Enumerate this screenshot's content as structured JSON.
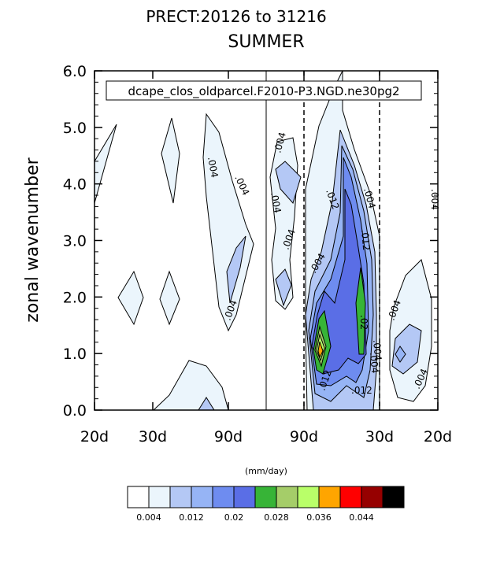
{
  "chart_data": {
    "type": "heatmap",
    "title": "PRECT:20126 to 31216",
    "subtitle": "SUMMER",
    "legend_text": "dcape_clos_oldparcel.F2010-P3.NGD.ne30pg2",
    "ylabel": "zonal wavenumber",
    "xlabel": "",
    "y_ticks": [
      "0.0",
      "1.0",
      "2.0",
      "3.0",
      "4.0",
      "5.0",
      "6.0"
    ],
    "ylim": [
      0,
      6
    ],
    "x_ticks": [
      "20d",
      "30d",
      "90d",
      "90d",
      "30d",
      "20d"
    ],
    "colorbar": {
      "units": "(mm/day)",
      "labels": [
        "0.004",
        "0.012",
        "0.02",
        "0.028",
        "0.036",
        "0.044"
      ],
      "colors": [
        "#ffffff",
        "#ebf5fc",
        "#b4c8f5",
        "#96b4f5",
        "#6e8cf0",
        "#5a6ee6",
        "#37b437",
        "#a5cd69",
        "#b9ff69",
        "#ffa500",
        "#ff0000",
        "#960000",
        "#000000"
      ]
    },
    "contour_labels": [
      ".004",
      ".004",
      ".004",
      ".004",
      ".004",
      ".004",
      ".012",
      ".004",
      ".004",
      ".012",
      ".004",
      ".02",
      ".004",
      ".012",
      ".012",
      ".004",
      ".004",
      ".004"
    ]
  }
}
